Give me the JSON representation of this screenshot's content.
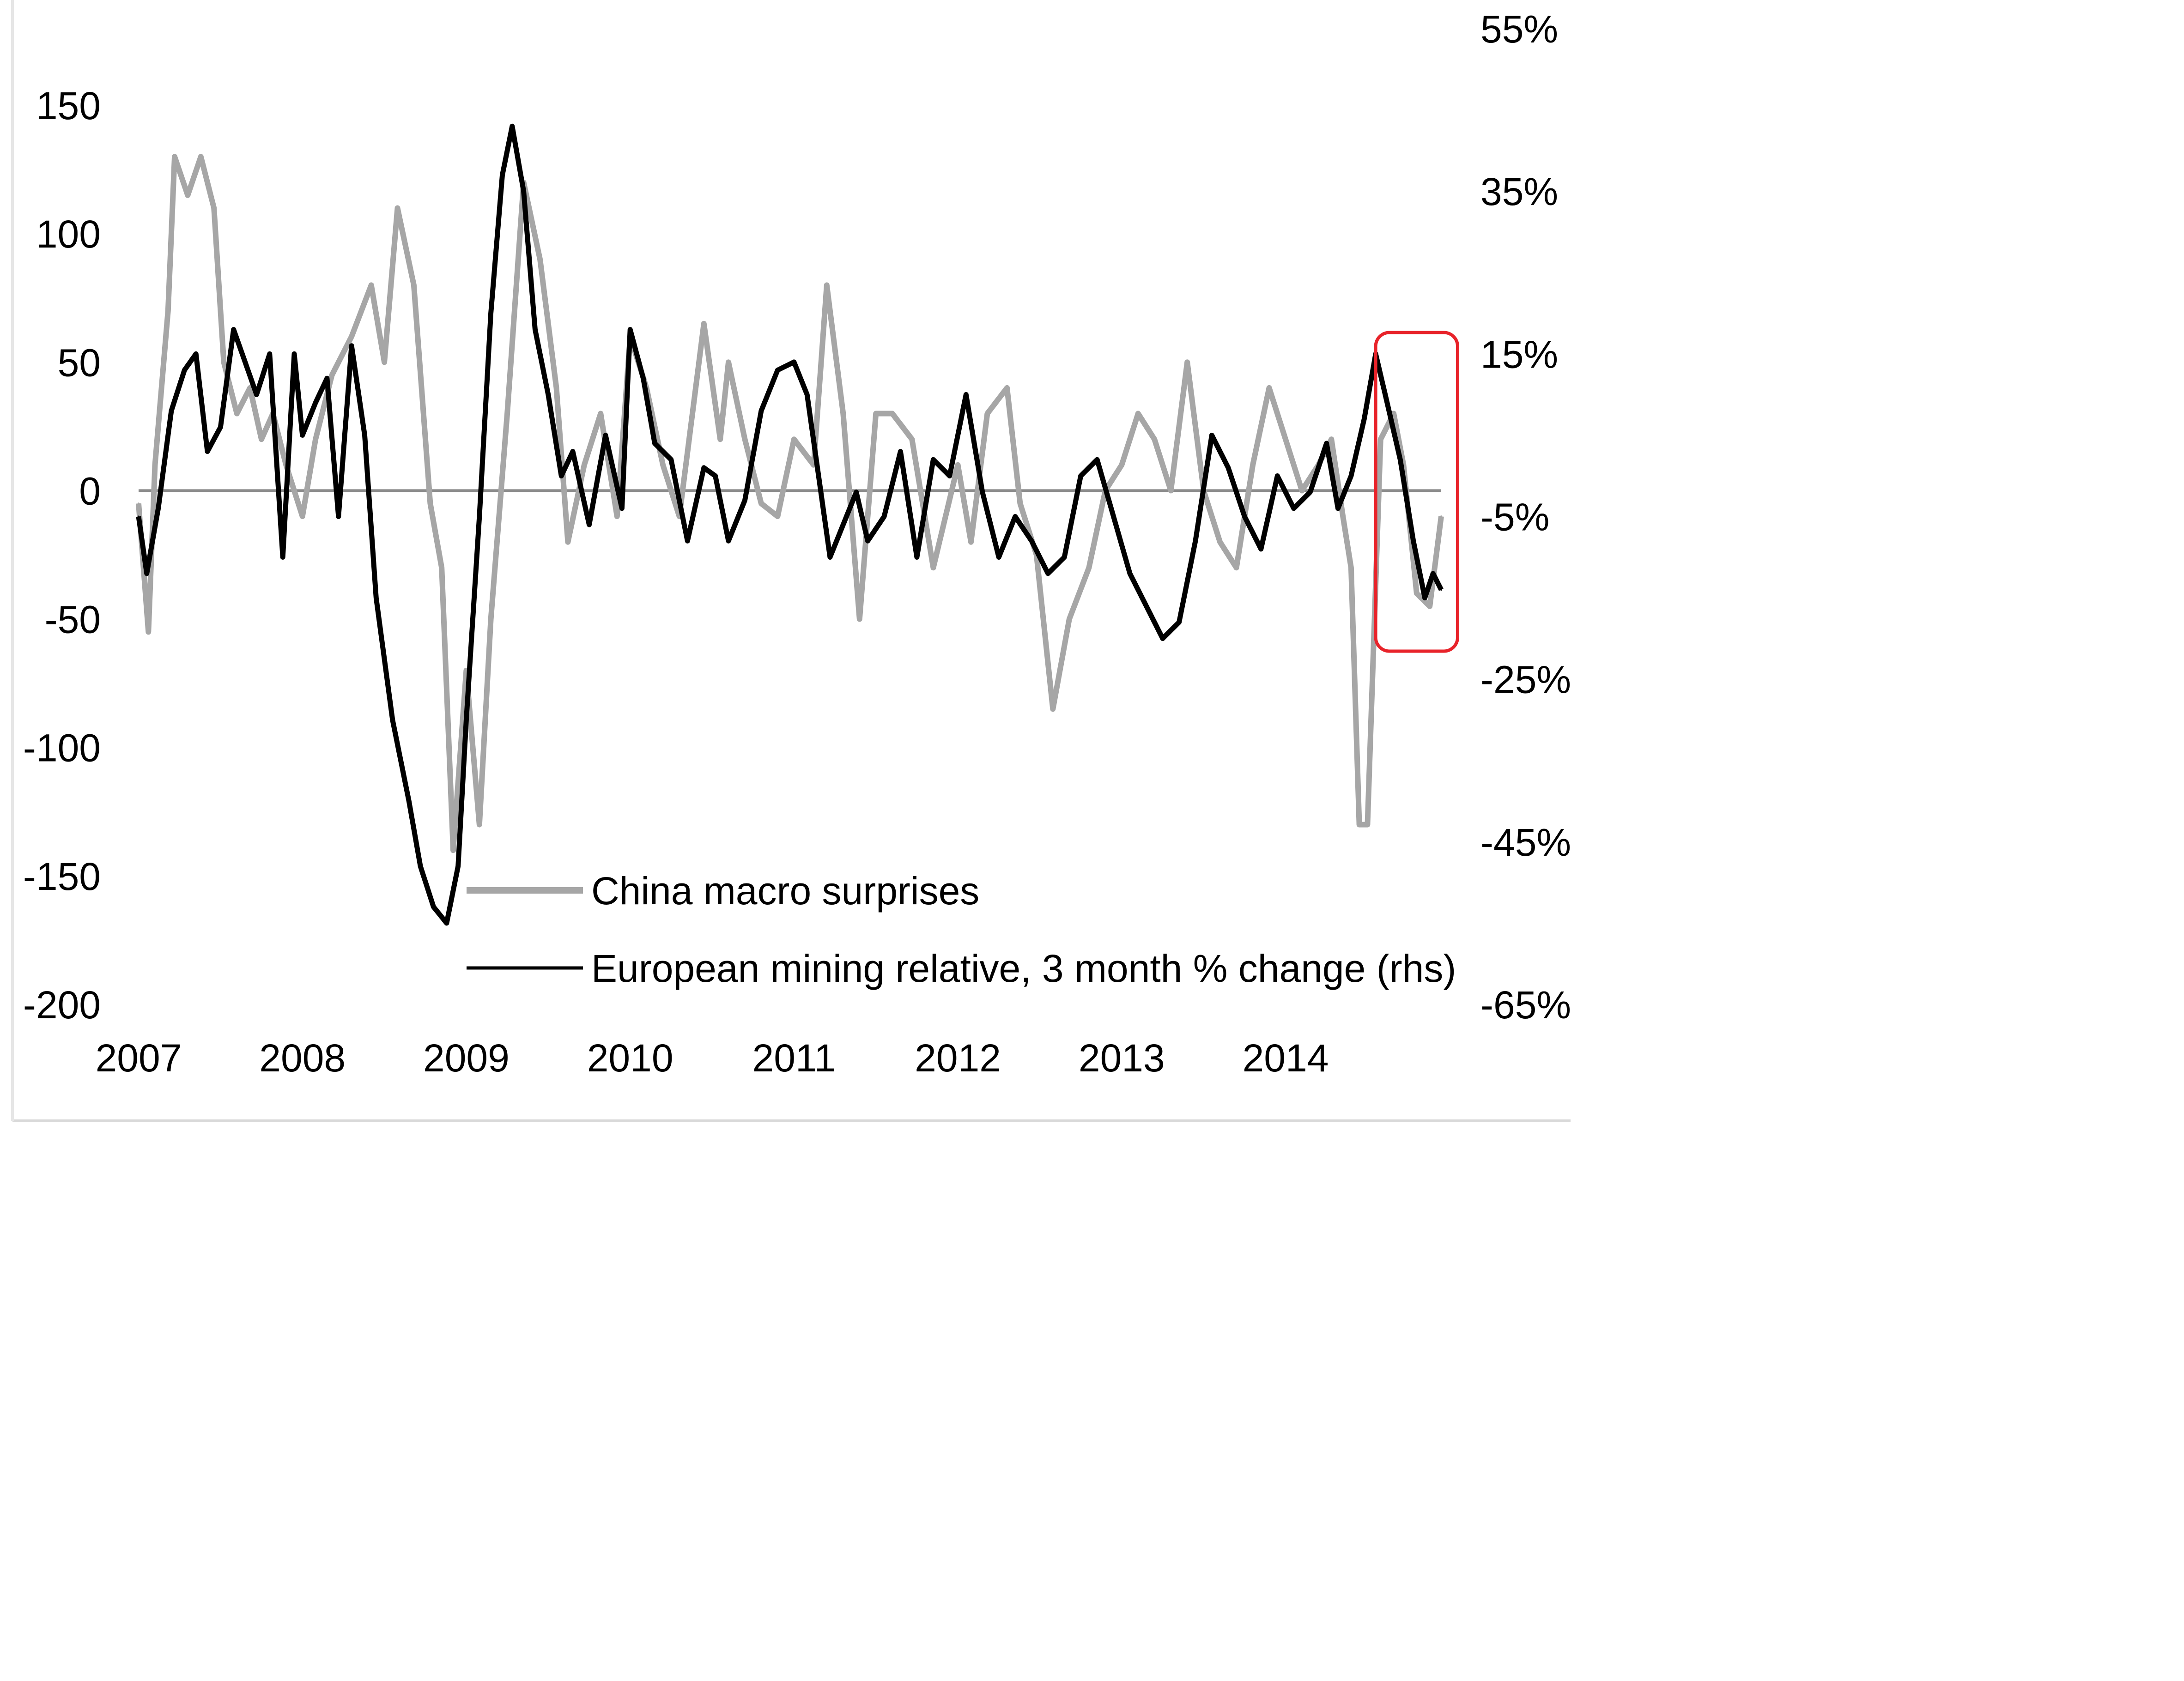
{
  "chart_data": {
    "type": "line",
    "title": "",
    "xlabel": "",
    "ylabel": "",
    "x_ticks": [
      "2007",
      "2008",
      "2009",
      "2010",
      "2011",
      "2012",
      "2013",
      "2014"
    ],
    "y_left_ticks": [
      "150",
      "100",
      "50",
      "0",
      "-50",
      "-100",
      "-150",
      "-200"
    ],
    "y_right_ticks": [
      "55%",
      "35%",
      "15%",
      "-5%",
      "-25%",
      "-45%",
      "-65%"
    ],
    "ylim_left": [
      -200,
      150
    ],
    "ylim_right": [
      -0.65,
      0.55
    ],
    "xlim": [
      2007.0,
      2014.95
    ],
    "grid": false,
    "legend_position": "bottom-center",
    "highlight_box": {
      "x_range": [
        2014.55,
        2015.05
      ],
      "color": "#e8232a"
    },
    "series": [
      {
        "name": "China macro surprises",
        "axis": "left",
        "color": "#a6a6a6",
        "x": [
          2007.0,
          2007.06,
          2007.1,
          2007.18,
          2007.22,
          2007.3,
          2007.38,
          2007.46,
          2007.52,
          2007.6,
          2007.68,
          2007.75,
          2007.82,
          2007.9,
          2008.0,
          2008.08,
          2008.18,
          2008.3,
          2008.42,
          2008.5,
          2008.58,
          2008.68,
          2008.78,
          2008.85,
          2008.92,
          2009.0,
          2009.08,
          2009.15,
          2009.25,
          2009.35,
          2009.45,
          2009.55,
          2009.62,
          2009.72,
          2009.82,
          2009.92,
          2010.0,
          2010.1,
          2010.2,
          2010.3,
          2010.45,
          2010.55,
          2010.6,
          2010.7,
          2010.8,
          2010.9,
          2011.0,
          2011.12,
          2011.2,
          2011.3,
          2011.4,
          2011.5,
          2011.6,
          2011.72,
          2011.85,
          2012.0,
          2012.08,
          2012.18,
          2012.3,
          2012.38,
          2012.48,
          2012.58,
          2012.68,
          2012.8,
          2012.9,
          2013.0,
          2013.1,
          2013.2,
          2013.3,
          2013.4,
          2013.5,
          2013.6,
          2013.7,
          2013.8,
          2013.9,
          2014.0,
          2014.1,
          2014.2,
          2014.28,
          2014.35,
          2014.4,
          2014.45,
          2014.5,
          2014.58,
          2014.66,
          2014.72,
          2014.8,
          2014.88,
          2014.95
        ],
        "values": [
          -5,
          -55,
          10,
          70,
          130,
          115,
          130,
          110,
          50,
          30,
          40,
          20,
          30,
          10,
          -10,
          20,
          45,
          60,
          80,
          50,
          110,
          80,
          -5,
          -30,
          -140,
          -70,
          -130,
          -50,
          30,
          120,
          90,
          40,
          -20,
          10,
          30,
          -10,
          60,
          40,
          10,
          -10,
          65,
          20,
          50,
          20,
          -5,
          -10,
          20,
          10,
          80,
          30,
          -50,
          30,
          30,
          20,
          -30,
          10,
          -20,
          30,
          40,
          -5,
          -25,
          -85,
          -50,
          -30,
          0,
          10,
          30,
          20,
          0,
          50,
          0,
          -20,
          -30,
          10,
          40,
          20,
          0,
          10,
          20,
          -10,
          -30,
          -130,
          -130,
          20,
          30,
          10,
          -40,
          -45,
          -10
        ]
      },
      {
        "name": "European mining relative, 3 month % change (rhs)",
        "axis": "right",
        "color": "#000000",
        "x": [
          2007.0,
          2007.05,
          2007.12,
          2007.2,
          2007.28,
          2007.35,
          2007.42,
          2007.5,
          2007.58,
          2007.65,
          2007.72,
          2007.8,
          2007.88,
          2007.95,
          2008.0,
          2008.08,
          2008.15,
          2008.22,
          2008.3,
          2008.38,
          2008.45,
          2008.55,
          2008.65,
          2008.72,
          2008.8,
          2008.88,
          2008.95,
          2009.0,
          2009.08,
          2009.15,
          2009.22,
          2009.28,
          2009.35,
          2009.42,
          2009.5,
          2009.58,
          2009.65,
          2009.75,
          2009.85,
          2009.95,
          2010.0,
          2010.08,
          2010.15,
          2010.25,
          2010.35,
          2010.45,
          2010.52,
          2010.6,
          2010.7,
          2010.8,
          2010.9,
          2011.0,
          2011.08,
          2011.15,
          2011.22,
          2011.3,
          2011.38,
          2011.45,
          2011.55,
          2011.65,
          2011.75,
          2011.85,
          2011.95,
          2012.05,
          2012.15,
          2012.25,
          2012.35,
          2012.45,
          2012.55,
          2012.65,
          2012.75,
          2012.85,
          2012.95,
          2013.05,
          2013.15,
          2013.25,
          2013.35,
          2013.45,
          2013.55,
          2013.65,
          2013.75,
          2013.85,
          2013.95,
          2014.05,
          2014.15,
          2014.25,
          2014.32,
          2014.4,
          2014.48,
          2014.55,
          2014.62,
          2014.7,
          2014.78,
          2014.85,
          2014.9,
          2014.95
        ],
        "values": [
          -0.05,
          -0.12,
          -0.04,
          0.08,
          0.13,
          0.15,
          0.03,
          0.06,
          0.18,
          0.14,
          0.1,
          0.15,
          -0.1,
          0.15,
          0.05,
          0.09,
          0.12,
          -0.05,
          0.16,
          0.05,
          -0.15,
          -0.3,
          -0.4,
          -0.48,
          -0.53,
          -0.55,
          -0.48,
          -0.3,
          -0.05,
          0.2,
          0.37,
          0.43,
          0.35,
          0.18,
          0.1,
          0.0,
          0.03,
          -0.06,
          0.05,
          -0.04,
          0.18,
          0.12,
          0.04,
          0.02,
          -0.08,
          0.01,
          0.0,
          -0.08,
          -0.03,
          0.08,
          0.13,
          0.14,
          0.1,
          0.0,
          -0.1,
          -0.06,
          -0.02,
          -0.08,
          -0.05,
          0.03,
          -0.1,
          0.02,
          0.0,
          0.1,
          -0.02,
          -0.1,
          -0.05,
          -0.08,
          -0.12,
          -0.1,
          0.0,
          0.02,
          -0.05,
          -0.12,
          -0.16,
          -0.2,
          -0.18,
          -0.08,
          0.05,
          0.01,
          -0.05,
          -0.09,
          0.0,
          -0.04,
          -0.02,
          0.04,
          -0.04,
          0.0,
          0.07,
          0.15,
          0.09,
          0.02,
          -0.08,
          -0.15,
          -0.12,
          -0.14
        ]
      }
    ]
  }
}
